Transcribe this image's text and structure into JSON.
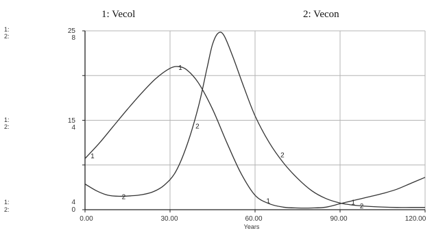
{
  "chart_data": {
    "type": "line",
    "legend": [
      {
        "number": "1",
        "label": "1: Vecol"
      },
      {
        "number": "2",
        "label": "2: Vecon"
      }
    ],
    "xlabel": "Years",
    "xlim": [
      0,
      120
    ],
    "x_ticks": [
      "0.00",
      "30.00",
      "60.00",
      "90.00",
      "120.00"
    ],
    "axes": [
      {
        "series": "1",
        "ylim": [
          4,
          25
        ],
        "tick_labels": [
          "4",
          "15",
          "25"
        ]
      },
      {
        "series": "2",
        "ylim": [
          0,
          8
        ],
        "tick_labels": [
          "0",
          "4",
          "8"
        ]
      }
    ],
    "axis_prefixes": [
      "1:",
      "2:"
    ],
    "grid": true,
    "series": [
      {
        "name": "Vecol",
        "number": "1",
        "axis": 0,
        "x": [
          0,
          5,
          10,
          15,
          20,
          25,
          30,
          33,
          36,
          40,
          45,
          50,
          55,
          60,
          65,
          70,
          75,
          80,
          85,
          90,
          95,
          100,
          105,
          110,
          115,
          120
        ],
        "y": [
          10.0,
          11.8,
          13.8,
          15.8,
          17.7,
          19.4,
          20.6,
          20.8,
          20.4,
          18.9,
          15.8,
          11.9,
          8.3,
          5.7,
          4.7,
          4.3,
          4.2,
          4.2,
          4.3,
          4.7,
          5.1,
          5.5,
          5.9,
          6.4,
          7.1,
          7.8
        ],
        "marks_at": [
          1,
          32,
          63,
          93
        ]
      },
      {
        "name": "Vecon",
        "number": "2",
        "axis": 1,
        "x": [
          0,
          4,
          8,
          12,
          16,
          20,
          24,
          28,
          32,
          36,
          40,
          43,
          45,
          47,
          49,
          52,
          56,
          60,
          65,
          70,
          75,
          80,
          85,
          90,
          95,
          100,
          105,
          110,
          115,
          120
        ],
        "y": [
          1.15,
          0.85,
          0.65,
          0.6,
          0.62,
          0.67,
          0.8,
          1.1,
          1.7,
          2.9,
          4.6,
          6.3,
          7.4,
          7.9,
          7.8,
          6.9,
          5.5,
          4.2,
          3.0,
          2.1,
          1.4,
          0.85,
          0.5,
          0.3,
          0.2,
          0.15,
          0.12,
          0.1,
          0.1,
          0.1
        ],
        "marks_at": [
          12,
          38,
          68,
          96
        ]
      }
    ]
  }
}
